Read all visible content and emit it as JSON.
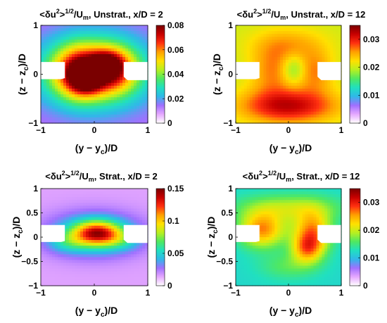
{
  "colormap": [
    "#ffffff",
    "#e6a8ff",
    "#a070ff",
    "#30b8e8",
    "#20e0c0",
    "#50e860",
    "#b8f020",
    "#ffe000",
    "#ffa000",
    "#ff3010",
    "#c80000",
    "#7a0000"
  ],
  "chart_data": [
    {
      "type": "heatmap",
      "title_prefix": "<δu",
      "title_sup1": "2",
      "title_mid": ">",
      "title_sup2": "1/2",
      "title_u": "/U",
      "title_sub": "m",
      "title_suffix": ", Unstrat., x/D = 2",
      "xlabel_pre": "(y − y",
      "xlabel_sub": "c",
      "xlabel_post": ")/D",
      "ylabel_pre": "(z − z",
      "ylabel_sub": "c",
      "ylabel_post": ")/D",
      "xlim": [
        -1,
        1
      ],
      "ylim": [
        -1,
        1
      ],
      "xticks": [
        "−1",
        "0",
        "1"
      ],
      "yticks": [
        "−1",
        "0",
        "1"
      ],
      "colorbar_range": [
        0,
        0.08
      ],
      "colorbar_ticks": [
        "0",
        "0.02",
        "0.04",
        "0.06",
        "0.08"
      ],
      "background_value": 0.012,
      "blobs": [
        {
          "x": 0,
          "y": 0.05,
          "sx": 0.7,
          "sy": 0.5,
          "v": 0.045
        },
        {
          "x": -0.3,
          "y": 0.05,
          "sx": 0.3,
          "sy": 0.35,
          "v": 0.035
        },
        {
          "x": 0.35,
          "y": 0.1,
          "sx": 0.28,
          "sy": 0.3,
          "v": 0.032
        },
        {
          "x": -0.15,
          "y": -0.1,
          "sx": 0.2,
          "sy": 0.2,
          "v": 0.03
        },
        {
          "x": 0.2,
          "y": 0.25,
          "sx": 0.2,
          "sy": 0.15,
          "v": 0.02
        }
      ]
    },
    {
      "type": "heatmap",
      "title_prefix": "<δu",
      "title_sup1": "2",
      "title_mid": ">",
      "title_sup2": "1/2",
      "title_u": "/U",
      "title_sub": "m",
      "title_suffix": ", Unstrat., x/D = 12",
      "xlabel_pre": "(y − y",
      "xlabel_sub": "c",
      "xlabel_post": ")/D",
      "ylabel_pre": "(z − z",
      "ylabel_sub": "c",
      "ylabel_post": ")/D",
      "xlim": [
        -1,
        1
      ],
      "ylim": [
        -1,
        1
      ],
      "xticks": [
        "−1",
        "0",
        "1"
      ],
      "yticks": [
        "−1",
        "0",
        "1"
      ],
      "colorbar_range": [
        0,
        0.035
      ],
      "colorbar_ticks": [
        "0",
        "0.01",
        "0.02",
        "0.03"
      ],
      "background_value": 0.02,
      "blobs": [
        {
          "x": 0,
          "y": -0.65,
          "sx": 0.65,
          "sy": 0.25,
          "v": 0.012
        },
        {
          "x": -0.3,
          "y": 0.05,
          "sx": 0.3,
          "sy": 0.35,
          "v": 0.006
        },
        {
          "x": 0.5,
          "y": 0.05,
          "sx": 0.25,
          "sy": 0.3,
          "v": 0.006
        },
        {
          "x": 0,
          "y": 0.6,
          "sx": 0.5,
          "sy": 0.25,
          "v": 0.005
        },
        {
          "x": 0.1,
          "y": 0.1,
          "sx": 0.15,
          "sy": 0.2,
          "v": -0.006
        }
      ]
    },
    {
      "type": "heatmap",
      "title_prefix": "<δu",
      "title_sup1": "2",
      "title_mid": ">",
      "title_sup2": "1/2",
      "title_u": "/U",
      "title_sub": "m",
      "title_suffix": ", Strat., x/D = 2",
      "xlabel_pre": "(y − y",
      "xlabel_sub": "c",
      "xlabel_post": ")/D",
      "ylabel_pre": "(z − z",
      "ylabel_sub": "c",
      "ylabel_post": ")/D",
      "xlim": [
        -1,
        1
      ],
      "ylim": [
        -1,
        1
      ],
      "xticks": [
        "−1",
        "0",
        "1"
      ],
      "yticks": [
        "−1",
        "−0.5",
        "0",
        "0.5",
        "1"
      ],
      "colorbar_range": [
        0,
        0.15
      ],
      "colorbar_ticks": [
        "0",
        "0.05",
        "0.1",
        "0.15"
      ],
      "background_value": 0.015,
      "blobs": [
        {
          "x": 0,
          "y": 0.05,
          "sx": 0.6,
          "sy": 0.3,
          "v": 0.045
        },
        {
          "x": 0.05,
          "y": 0.08,
          "sx": 0.3,
          "sy": 0.17,
          "v": 0.085
        },
        {
          "x": -0.5,
          "y": -0.1,
          "sx": 0.25,
          "sy": 0.15,
          "v": 0.02
        },
        {
          "x": 0.5,
          "y": -0.05,
          "sx": 0.25,
          "sy": 0.15,
          "v": 0.018
        }
      ]
    },
    {
      "type": "heatmap",
      "title_prefix": "<δu",
      "title_sup1": "2",
      "title_mid": ">",
      "title_sup2": "1/2",
      "title_u": "/U",
      "title_sub": "m",
      "title_suffix": ", Strat., x/D = 12",
      "xlabel_pre": "(y − y",
      "xlabel_sub": "c",
      "xlabel_post": ")/D",
      "ylabel_pre": "(z − z",
      "ylabel_sub": "c",
      "ylabel_post": ")/D",
      "xlim": [
        -1,
        1
      ],
      "ylim": [
        -1,
        1
      ],
      "xticks": [
        "−1",
        "0",
        "1"
      ],
      "yticks": [
        "−1",
        "−0.5",
        "0",
        "0.5",
        "1"
      ],
      "colorbar_range": [
        0,
        0.035
      ],
      "colorbar_ticks": [
        "0",
        "0.01",
        "0.02",
        "0.03"
      ],
      "background_value": 0.012,
      "blobs": [
        {
          "x": -0.5,
          "y": 0.15,
          "sx": 0.3,
          "sy": 0.25,
          "v": 0.014
        },
        {
          "x": 0.45,
          "y": 0.1,
          "sx": 0.25,
          "sy": 0.3,
          "v": 0.014
        },
        {
          "x": 0.35,
          "y": -0.25,
          "sx": 0.2,
          "sy": 0.2,
          "v": 0.01
        },
        {
          "x": 0,
          "y": 0.6,
          "sx": 0.7,
          "sy": 0.2,
          "v": 0.007
        },
        {
          "x": 0,
          "y": -0.6,
          "sx": 0.4,
          "sy": 0.2,
          "v": 0.004
        }
      ]
    }
  ]
}
